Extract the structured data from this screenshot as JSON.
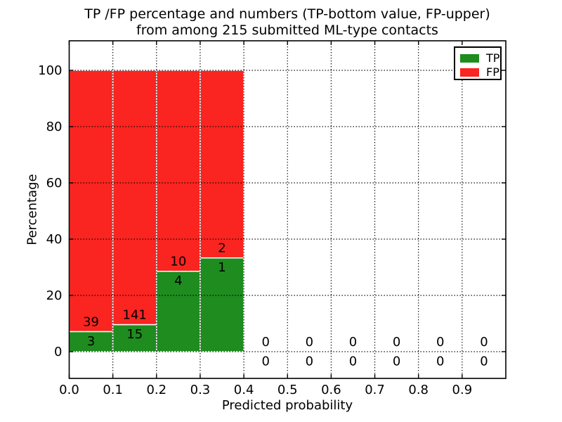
{
  "chart_data": {
    "type": "bar",
    "stacked": true,
    "title_line1": "TP /FP percentage and numbers (TP-bottom value, FP-upper)",
    "title_line2": "from among 215 submitted ML-type contacts",
    "xlabel": "Predicted probability",
    "ylabel": "Percentage",
    "total_contacts": 215,
    "xlim": [
      0.0,
      1.0
    ],
    "ylim": [
      -9.5,
      110.5
    ],
    "grid": true,
    "grid_linestyle": "dotted",
    "bin_width": 0.1,
    "bar_total_pct_when_nonempty": 100,
    "xticks": [
      {
        "value": 0.0,
        "label": "0.0"
      },
      {
        "value": 0.1,
        "label": "0.1"
      },
      {
        "value": 0.2,
        "label": "0.2"
      },
      {
        "value": 0.3,
        "label": "0.3"
      },
      {
        "value": 0.4,
        "label": "0.4"
      },
      {
        "value": 0.5,
        "label": "0.5"
      },
      {
        "value": 0.6,
        "label": "0.6"
      },
      {
        "value": 0.7,
        "label": "0.7"
      },
      {
        "value": 0.8,
        "label": "0.8"
      },
      {
        "value": 0.9,
        "label": "0.9"
      }
    ],
    "yticks": [
      {
        "value": 0,
        "label": "0"
      },
      {
        "value": 20,
        "label": "20"
      },
      {
        "value": 40,
        "label": "40"
      },
      {
        "value": 60,
        "label": "60"
      },
      {
        "value": 80,
        "label": "80"
      },
      {
        "value": 100,
        "label": "100"
      }
    ],
    "bins": [
      {
        "range_start": 0.0,
        "range_end": 0.1,
        "tp_count": 3,
        "fp_count": 39
      },
      {
        "range_start": 0.1,
        "range_end": 0.2,
        "tp_count": 15,
        "fp_count": 141
      },
      {
        "range_start": 0.2,
        "range_end": 0.3,
        "tp_count": 4,
        "fp_count": 10
      },
      {
        "range_start": 0.3,
        "range_end": 0.4,
        "tp_count": 1,
        "fp_count": 2
      },
      {
        "range_start": 0.4,
        "range_end": 0.5,
        "tp_count": 0,
        "fp_count": 0
      },
      {
        "range_start": 0.5,
        "range_end": 0.6,
        "tp_count": 0,
        "fp_count": 0
      },
      {
        "range_start": 0.6,
        "range_end": 0.7,
        "tp_count": 0,
        "fp_count": 0
      },
      {
        "range_start": 0.7,
        "range_end": 0.8,
        "tp_count": 0,
        "fp_count": 0
      },
      {
        "range_start": 0.8,
        "range_end": 0.9,
        "tp_count": 0,
        "fp_count": 0
      },
      {
        "range_start": 0.9,
        "range_end": 1.0,
        "tp_count": 0,
        "fp_count": 0
      }
    ],
    "legend": {
      "position": "upper right",
      "items": [
        {
          "label": "TP",
          "color": "#1e8c1e"
        },
        {
          "label": "FP",
          "color": "#fa2420"
        }
      ]
    },
    "colors": {
      "tp": "#1e8c1e",
      "fp": "#fa2420",
      "bar_edge": "#ffffff",
      "grid": "#000000",
      "axis": "#000000",
      "text": "#000000",
      "background": "#ffffff"
    }
  }
}
